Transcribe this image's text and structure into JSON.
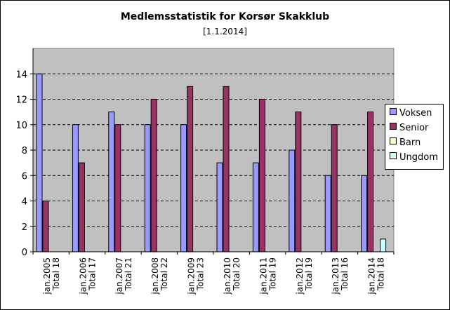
{
  "chart_data": {
    "type": "bar",
    "title": "Medlemsstatistik for Korsør Skakklub",
    "subtitle": "[1.1.2014]",
    "categories": [
      "jan.2005",
      "jan.2006",
      "jan.2007",
      "jan.2008",
      "jan.2009",
      "jan.2010",
      "jan.2011",
      "jan.2012",
      "jan.2013",
      "jan.2014"
    ],
    "category_totals": [
      "Total 18",
      "Total 17",
      "Total 21",
      "Total 22",
      "Total 23",
      "Total 20",
      "Total 19",
      "Total 19",
      "Total 16",
      "Total 18"
    ],
    "series": [
      {
        "name": "Voksen",
        "color": "#9999ff",
        "values": [
          14,
          10,
          11,
          10,
          10,
          7,
          7,
          8,
          6,
          6
        ]
      },
      {
        "name": "Senior",
        "color": "#993366",
        "values": [
          4,
          7,
          10,
          12,
          13,
          13,
          12,
          11,
          10,
          11
        ]
      },
      {
        "name": "Barn",
        "color": "#ffffcc",
        "values": [
          0,
          0,
          0,
          0,
          0,
          0,
          0,
          0,
          0,
          0
        ]
      },
      {
        "name": "Ungdom",
        "color": "#ccffff",
        "values": [
          0,
          0,
          0,
          0,
          0,
          0,
          0,
          0,
          0,
          1
        ]
      }
    ],
    "yticks": [
      "0",
      "2",
      "4",
      "6",
      "8",
      "10",
      "12",
      "14"
    ],
    "ylim": [
      0,
      16
    ],
    "grid": true,
    "legend_position": "right",
    "plot_background": "#c0c0c0"
  }
}
